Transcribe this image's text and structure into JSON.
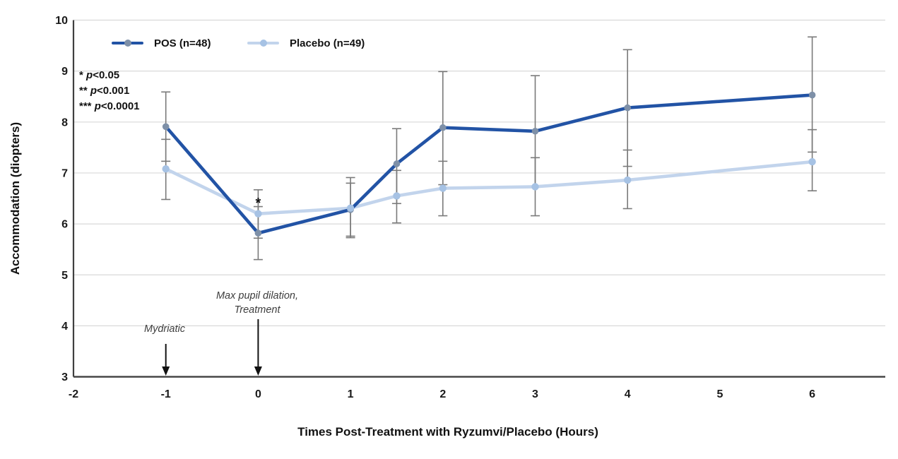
{
  "chart_data": {
    "type": "line",
    "title": "",
    "xlabel": "Times Post-Treatment with Ryzumvi/Placebo (Hours)",
    "ylabel": "Accommodation (diopters)",
    "x_tick_labels": [
      "-2",
      "-1",
      "0",
      "1",
      "2",
      "3",
      "4",
      "5",
      "6"
    ],
    "y_tick_labels": [
      "10",
      "9",
      "8",
      "7",
      "6",
      "5",
      "4",
      "3"
    ],
    "xlim": [
      -2,
      6.85
    ],
    "ylim": [
      3,
      10
    ],
    "grid": "horizontal",
    "legend_position": "top-left-inside",
    "x": [
      -1,
      0,
      1,
      1.5,
      2,
      3,
      4,
      6
    ],
    "series": [
      {
        "name": "POS (n=48)",
        "line_color": "#2253a5",
        "marker_color": "#7e90a8",
        "values": [
          7.91,
          5.82,
          6.28,
          7.18,
          7.89,
          7.82,
          8.28,
          8.53
        ],
        "err_low": [
          7.23,
          5.3,
          5.76,
          6.4,
          6.77,
          6.73,
          7.13,
          7.41
        ],
        "err_high": [
          8.59,
          6.34,
          6.8,
          7.87,
          8.99,
          8.91,
          9.42,
          9.67
        ]
      },
      {
        "name": "Placebo (n=49)",
        "line_color": "#c2d4ec",
        "marker_color": "#a6c2e4",
        "values": [
          7.08,
          6.2,
          6.31,
          6.55,
          6.7,
          6.73,
          6.86,
          7.22
        ],
        "err_low": [
          6.48,
          5.72,
          5.73,
          6.02,
          6.16,
          6.16,
          6.3,
          6.65
        ],
        "err_high": [
          7.66,
          6.67,
          6.91,
          7.05,
          7.23,
          7.3,
          7.45,
          7.85
        ]
      }
    ],
    "annotations": {
      "significance_note": [
        "* p<0.05",
        "** p<0.001",
        "*** p<0.0001"
      ],
      "point_significance": {
        "label": "*",
        "x": 0,
        "y": 6.42
      },
      "arrows": [
        {
          "x": -1,
          "label_lines": [
            "Mydriatic"
          ]
        },
        {
          "x": 0,
          "label_lines": [
            "Max pupil dilation,",
            "Treatment"
          ]
        }
      ]
    },
    "error_bar_color": "#7a7a7a",
    "grid_color": "#d9d9d9",
    "axis_color": "#3f3f3f"
  }
}
